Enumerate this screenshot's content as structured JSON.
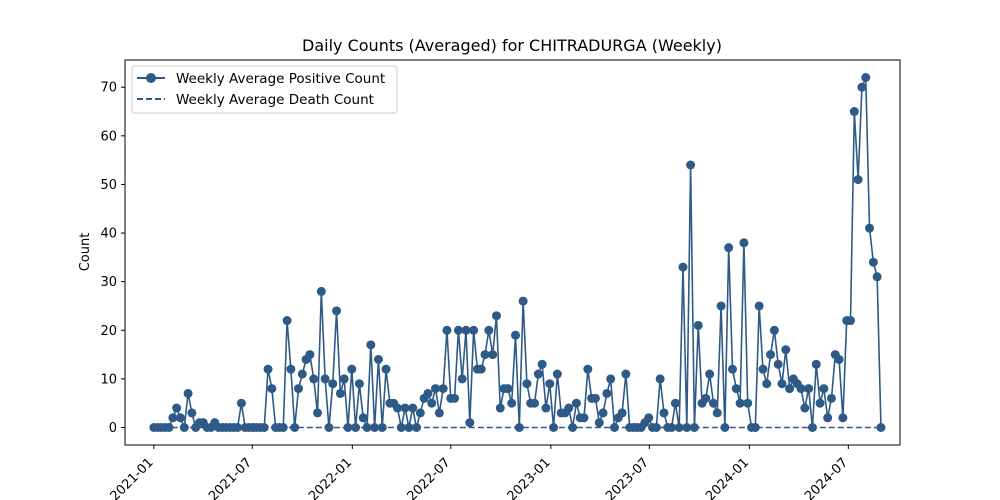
{
  "chart_data": {
    "type": "line",
    "title": "Daily Counts (Averaged) for CHITRADURGA (Weekly)",
    "xlabel": "",
    "ylabel": "Count",
    "x_start_date": "2021-01-01",
    "x_step_days": 7,
    "xlim_dates": [
      "2020-11-09",
      "2024-10-04"
    ],
    "ylim": [
      -3.6,
      75.6
    ],
    "x_ticks": [
      {
        "date": "2021-01-01",
        "label": "2021-01"
      },
      {
        "date": "2021-07-01",
        "label": "2021-07"
      },
      {
        "date": "2022-01-01",
        "label": "2022-01"
      },
      {
        "date": "2022-07-01",
        "label": "2022-07"
      },
      {
        "date": "2023-01-01",
        "label": "2023-01"
      },
      {
        "date": "2023-07-01",
        "label": "2023-07"
      },
      {
        "date": "2024-01-01",
        "label": "2024-01"
      },
      {
        "date": "2024-07-01",
        "label": "2024-07"
      }
    ],
    "y_ticks": [
      0,
      10,
      20,
      30,
      40,
      50,
      60,
      70
    ],
    "grid": false,
    "legend_position": "top-left",
    "series": [
      {
        "name": "Weekly Average Positive Count",
        "style": "solid-with-markers",
        "color": "#2e5a87",
        "values": [
          0,
          0,
          0,
          0,
          0,
          2,
          4,
          2,
          0,
          7,
          3,
          0,
          1,
          1,
          0,
          0,
          1,
          0,
          0,
          0,
          0,
          0,
          0,
          5,
          0,
          0,
          0,
          0,
          0,
          0,
          12,
          8,
          0,
          0,
          0,
          22,
          12,
          0,
          8,
          11,
          14,
          15,
          10,
          3,
          28,
          10,
          0,
          9,
          24,
          7,
          10,
          0,
          12,
          0,
          9,
          2,
          0,
          17,
          0,
          14,
          0,
          12,
          5,
          5,
          4,
          0,
          4,
          0,
          4,
          0,
          3,
          6,
          7,
          5,
          8,
          3,
          8,
          20,
          6,
          6,
          20,
          10,
          20,
          1,
          20,
          12,
          12,
          15,
          20,
          15,
          23,
          4,
          8,
          8,
          5,
          19,
          0,
          26,
          9,
          5,
          5,
          11,
          13,
          4,
          9,
          0,
          11,
          3,
          3,
          4,
          0,
          5,
          2,
          2,
          12,
          6,
          6,
          1,
          3,
          7,
          10,
          0,
          2,
          3,
          11,
          0,
          0,
          0,
          0,
          1,
          2,
          0,
          0,
          10,
          3,
          0,
          0,
          5,
          0,
          33,
          0,
          54,
          0,
          21,
          5,
          6,
          11,
          5,
          3,
          25,
          0,
          37,
          12,
          8,
          5,
          38,
          5,
          0,
          0,
          25,
          12,
          9,
          15,
          20,
          13,
          9,
          16,
          8,
          10,
          9,
          8,
          4,
          8,
          0,
          13,
          5,
          8,
          2,
          6,
          15,
          14,
          2,
          22,
          22,
          65,
          51,
          70,
          72,
          41,
          34,
          31,
          0
        ]
      },
      {
        "name": "Weekly Average Death Count",
        "style": "dashed",
        "color": "#2e5a87",
        "constant_value": 0
      }
    ]
  }
}
